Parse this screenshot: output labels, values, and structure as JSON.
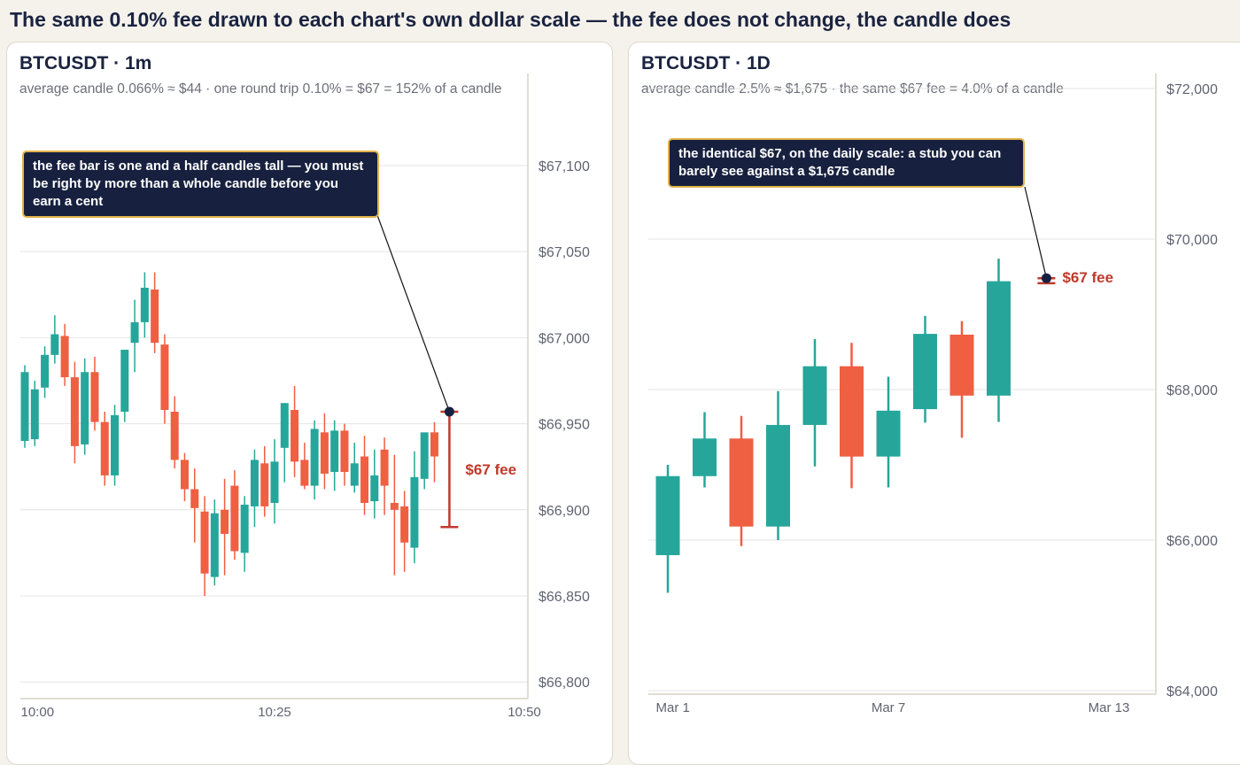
{
  "page": {
    "title": "The same 0.10% fee drawn to each chart's own dollar scale — the fee does not change, the candle does"
  },
  "colors": {
    "up": "#26a69a",
    "down": "#ef5f42",
    "fee": "#c0392b",
    "callout_bg": "#17213f",
    "callout_border": "#e3b24a",
    "grid": "#e4e4e4",
    "axis_text": "#5f6470"
  },
  "chart_data": [
    {
      "type": "candlestick",
      "title": "BTCUSDT · 1m",
      "subtitle": "average candle 0.066% ≈ $44 · one round trip 0.10% = $67 = 152% of a candle",
      "x_tick_labels": [
        "10:00",
        "10:25",
        "10:50"
      ],
      "x_tick_index": [
        0,
        25,
        50
      ],
      "x_range": [
        0,
        50
      ],
      "ylim": [
        66760,
        67110
      ],
      "y_ticks": [
        66800,
        66850,
        66900,
        66950,
        67000,
        67050,
        67100
      ],
      "y_tick_labels": [
        "$66,800",
        "$66,850",
        "$66,900",
        "$66,950",
        "$67,000",
        "$67,050",
        "$67,100"
      ],
      "candles": [
        {
          "i": 0,
          "o": 66940,
          "h": 66984,
          "l": 66936,
          "c": 66980
        },
        {
          "i": 1,
          "o": 66941,
          "h": 66975,
          "l": 66937,
          "c": 66970
        },
        {
          "i": 2,
          "o": 66971,
          "h": 66995,
          "l": 66965,
          "c": 66990
        },
        {
          "i": 3,
          "o": 66990,
          "h": 67013,
          "l": 66985,
          "c": 67002
        },
        {
          "i": 4,
          "o": 67001,
          "h": 67008,
          "l": 66972,
          "c": 66977
        },
        {
          "i": 5,
          "o": 66977,
          "h": 66986,
          "l": 66927,
          "c": 66937
        },
        {
          "i": 6,
          "o": 66938,
          "h": 66988,
          "l": 66932,
          "c": 66980
        },
        {
          "i": 7,
          "o": 66980,
          "h": 66989,
          "l": 66946,
          "c": 66951
        },
        {
          "i": 8,
          "o": 66951,
          "h": 66957,
          "l": 66914,
          "c": 66920
        },
        {
          "i": 9,
          "o": 66920,
          "h": 66961,
          "l": 66914,
          "c": 66955
        },
        {
          "i": 10,
          "o": 66957,
          "h": 66993,
          "l": 66951,
          "c": 66993
        },
        {
          "i": 11,
          "o": 66997,
          "h": 67022,
          "l": 66980,
          "c": 67009
        },
        {
          "i": 12,
          "o": 67009,
          "h": 67038,
          "l": 67000,
          "c": 67029
        },
        {
          "i": 13,
          "o": 67028,
          "h": 67038,
          "l": 66991,
          "c": 66997
        },
        {
          "i": 14,
          "o": 66996,
          "h": 67002,
          "l": 66950,
          "c": 66958
        },
        {
          "i": 15,
          "o": 66957,
          "h": 66966,
          "l": 66924,
          "c": 66929
        },
        {
          "i": 16,
          "o": 66929,
          "h": 66933,
          "l": 66905,
          "c": 66912
        },
        {
          "i": 17,
          "o": 66912,
          "h": 66924,
          "l": 66881,
          "c": 66901
        },
        {
          "i": 18,
          "o": 66899,
          "h": 66908,
          "l": 66850,
          "c": 66863
        },
        {
          "i": 19,
          "o": 66861,
          "h": 66906,
          "l": 66856,
          "c": 66898
        },
        {
          "i": 20,
          "o": 66900,
          "h": 66918,
          "l": 66862,
          "c": 66886
        },
        {
          "i": 21,
          "o": 66914,
          "h": 66923,
          "l": 66871,
          "c": 66876
        },
        {
          "i": 22,
          "o": 66875,
          "h": 66908,
          "l": 66864,
          "c": 66903
        },
        {
          "i": 23,
          "o": 66902,
          "h": 66935,
          "l": 66890,
          "c": 66929
        },
        {
          "i": 24,
          "o": 66927,
          "h": 66937,
          "l": 66896,
          "c": 66902
        },
        {
          "i": 25,
          "o": 66904,
          "h": 66941,
          "l": 66892,
          "c": 66928
        },
        {
          "i": 26,
          "o": 66936,
          "h": 66962,
          "l": 66916,
          "c": 66962
        },
        {
          "i": 27,
          "o": 66958,
          "h": 66972,
          "l": 66919,
          "c": 66928
        },
        {
          "i": 28,
          "o": 66929,
          "h": 66939,
          "l": 66912,
          "c": 66914
        },
        {
          "i": 29,
          "o": 66914,
          "h": 66952,
          "l": 66906,
          "c": 66947
        },
        {
          "i": 30,
          "o": 66945,
          "h": 66956,
          "l": 66912,
          "c": 66921
        },
        {
          "i": 31,
          "o": 66922,
          "h": 66952,
          "l": 66911,
          "c": 66946
        },
        {
          "i": 32,
          "o": 66946,
          "h": 66950,
          "l": 66914,
          "c": 66922
        },
        {
          "i": 33,
          "o": 66914,
          "h": 66939,
          "l": 66910,
          "c": 66927
        },
        {
          "i": 34,
          "o": 66931,
          "h": 66943,
          "l": 66897,
          "c": 66904
        },
        {
          "i": 35,
          "o": 66905,
          "h": 66935,
          "l": 66895,
          "c": 66920
        },
        {
          "i": 36,
          "o": 66935,
          "h": 66942,
          "l": 66897,
          "c": 66914
        },
        {
          "i": 37,
          "o": 66904,
          "h": 66932,
          "l": 66862,
          "c": 66900
        },
        {
          "i": 38,
          "o": 66902,
          "h": 66911,
          "l": 66864,
          "c": 66881
        },
        {
          "i": 39,
          "o": 66878,
          "h": 66934,
          "l": 66869,
          "c": 66919
        },
        {
          "i": 40,
          "o": 66918,
          "h": 66943,
          "l": 66912,
          "c": 66945
        },
        {
          "i": 41,
          "o": 66945,
          "h": 66951,
          "l": 66916,
          "c": 66931
        }
      ],
      "fee_marker": {
        "x_index": 42.5,
        "top": 66957,
        "bottom": 66890,
        "label": "$67 fee"
      },
      "callout": "the fee bar is one and a half candles tall — you must be right by more than a whole candle before you earn a cent"
    },
    {
      "type": "candlestick",
      "title": "BTCUSDT · 1D",
      "subtitle": "average candle 2.5% ≈ $1,675 · the same $67 fee = 4.0% of a candle",
      "x_tick_labels": [
        "Mar 1",
        "Mar 7",
        "Mar 13"
      ],
      "x_tick_index": [
        0,
        6,
        12
      ],
      "x_range": [
        0,
        12
      ],
      "ylim": [
        64000,
        72000
      ],
      "y_ticks": [
        64000,
        66000,
        68000,
        70000,
        72000
      ],
      "y_tick_labels": [
        "$64,000",
        "$66,000",
        "$68,000",
        "$70,000",
        "$72,000"
      ],
      "candles": [
        {
          "i": 0,
          "o": 65800,
          "h": 67000,
          "l": 65300,
          "c": 66850
        },
        {
          "i": 1,
          "o": 66850,
          "h": 67700,
          "l": 66700,
          "c": 67350
        },
        {
          "i": 2,
          "o": 67350,
          "h": 67650,
          "l": 65920,
          "c": 66180
        },
        {
          "i": 3,
          "o": 66180,
          "h": 67980,
          "l": 66000,
          "c": 67530
        },
        {
          "i": 4,
          "o": 67530,
          "h": 68670,
          "l": 66980,
          "c": 68310
        },
        {
          "i": 5,
          "o": 68310,
          "h": 68620,
          "l": 66690,
          "c": 67110
        },
        {
          "i": 6,
          "o": 67110,
          "h": 68170,
          "l": 66700,
          "c": 67720
        },
        {
          "i": 7,
          "o": 67740,
          "h": 68980,
          "l": 67560,
          "c": 68740
        },
        {
          "i": 8,
          "o": 68730,
          "h": 68910,
          "l": 67360,
          "c": 67920
        },
        {
          "i": 9,
          "o": 67920,
          "h": 69740,
          "l": 67570,
          "c": 69440
        }
      ],
      "fee_marker": {
        "x_index": 10.3,
        "top": 69480,
        "bottom": 69413,
        "label": "$67 fee"
      },
      "callout": "the identical $67, on the daily scale: a stub you can barely see against a $1,675 candle"
    }
  ]
}
